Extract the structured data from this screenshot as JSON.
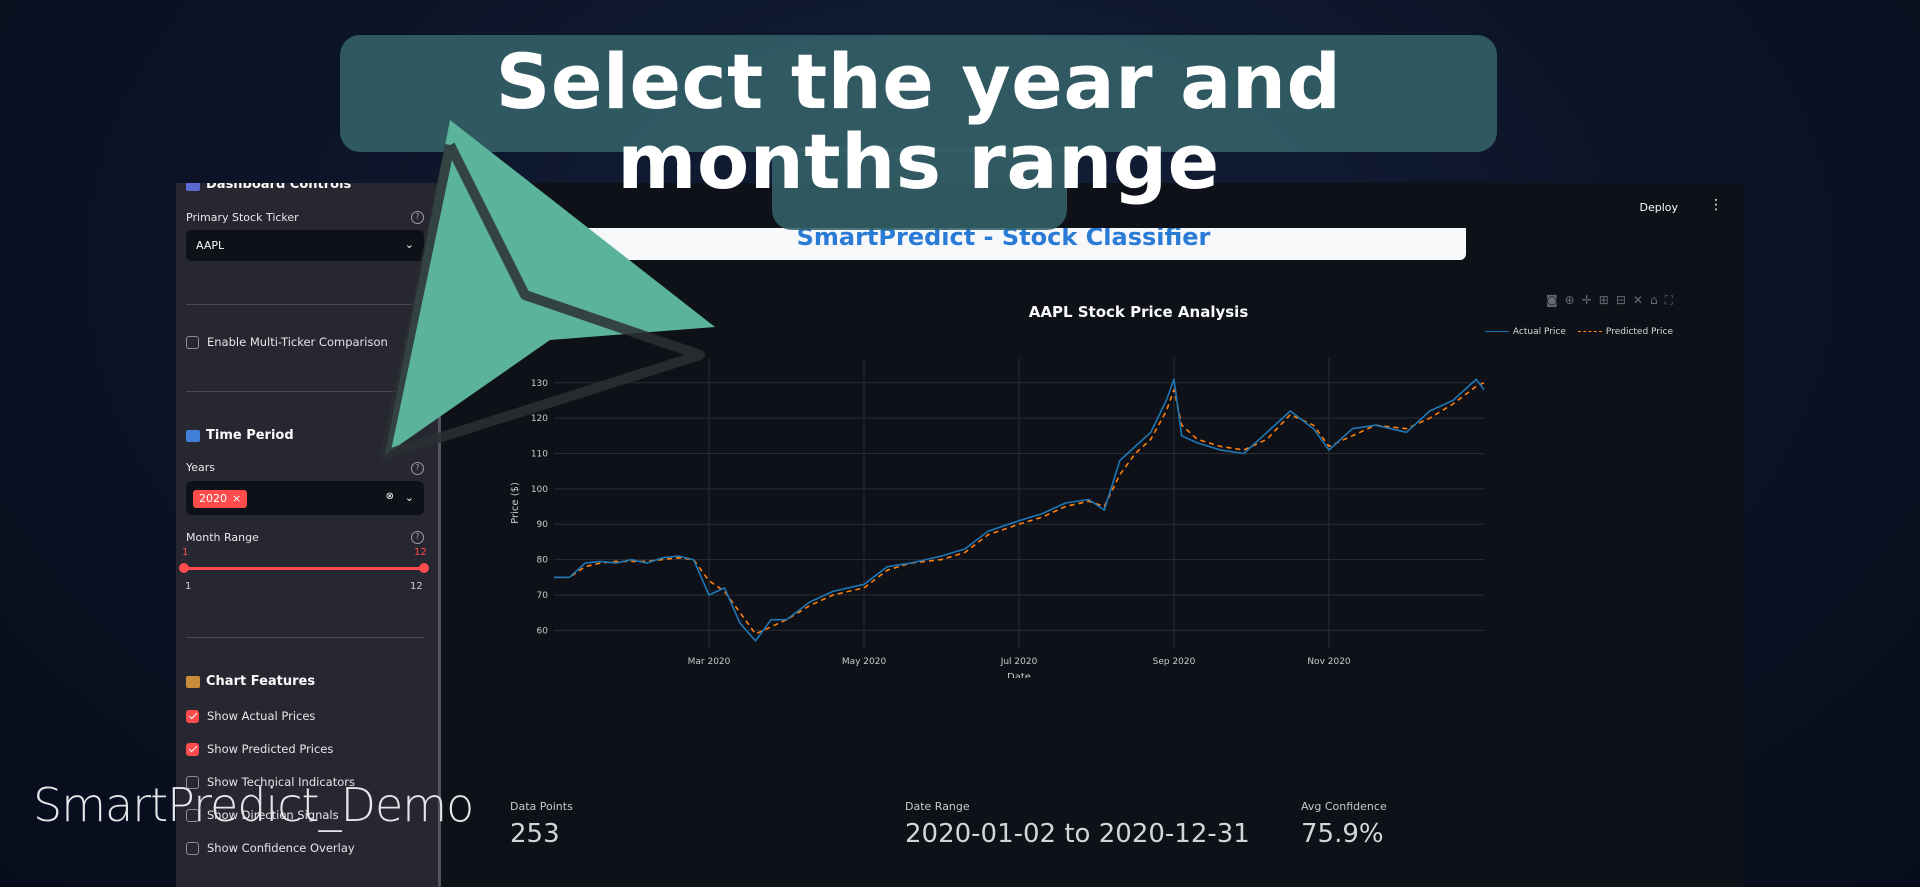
{
  "overlay": {
    "caption": "Select the year and months range",
    "watermark": "SmartPredict_Demo"
  },
  "sidebar": {
    "section_title": "Dashboard Controls",
    "ticker_label": "Primary Stock Ticker",
    "ticker_value": "AAPL",
    "multi_ticker_label": "Enable Multi-Ticker Comparison",
    "multi_ticker_checked": false,
    "time_period_title": "Time Period",
    "years_label": "Years",
    "years_selected": "2020",
    "month_range_label": "Month Range",
    "month_range_low": "1",
    "month_range_high": "12",
    "month_min_label": "1",
    "month_max_label": "12",
    "chart_features_title": "Chart Features",
    "features": [
      {
        "label": "Show Actual Prices",
        "checked": true
      },
      {
        "label": "Show Predicted Prices",
        "checked": true
      },
      {
        "label": "Show Technical Indicators",
        "checked": false
      },
      {
        "label": "Show Direction Signals",
        "checked": false
      },
      {
        "label": "Show Confidence Overlay",
        "checked": false
      }
    ]
  },
  "header": {
    "deploy_label": "Deploy",
    "app_title": "SmartPredict - Stock Classifier"
  },
  "metrics": [
    {
      "label": "Data Points",
      "value": "253"
    },
    {
      "label": "Date Range",
      "value": "2020-01-02 to 2020-12-31"
    },
    {
      "label": "Avg Confidence",
      "value": "75.9%"
    }
  ],
  "colors": {
    "accent": "#ff4b4b",
    "actual": "#1f77b4",
    "predicted": "#ff7f0e",
    "caption_bg": "#346269",
    "pointer": "#5bb39b"
  },
  "chart_data": {
    "type": "line",
    "title": "AAPL Stock Price Analysis",
    "xlabel": "Date",
    "ylabel": "Price ($)",
    "ylim": [
      55,
      137
    ],
    "y_ticks": [
      60,
      70,
      80,
      90,
      100,
      110,
      120,
      130
    ],
    "x_tick_labels": [
      "Mar 2020",
      "May 2020",
      "Jul 2020",
      "Sep 2020",
      "Nov 2020"
    ],
    "x_tick_months": [
      3,
      5,
      7,
      9,
      11
    ],
    "legend": "top-right",
    "series": [
      {
        "name": "Actual Price",
        "months": [
          1.0,
          1.2,
          1.4,
          1.6,
          1.8,
          2.0,
          2.2,
          2.4,
          2.6,
          2.8,
          3.0,
          3.2,
          3.4,
          3.6,
          3.8,
          4.0,
          4.3,
          4.6,
          5.0,
          5.3,
          5.6,
          6.0,
          6.3,
          6.6,
          7.0,
          7.3,
          7.6,
          7.9,
          8.1,
          8.3,
          8.5,
          8.7,
          8.9,
          9.0,
          9.1,
          9.3,
          9.6,
          9.9,
          10.2,
          10.5,
          10.8,
          11.0,
          11.3,
          11.6,
          12.0,
          12.3,
          12.6,
          12.9,
          13.0
        ],
        "values": [
          75,
          75,
          79,
          79.5,
          79,
          80,
          79,
          80.5,
          81,
          80,
          70,
          72,
          62,
          57,
          63,
          63,
          68,
          71,
          73,
          78,
          79,
          81,
          83,
          88,
          91,
          93,
          96,
          97,
          94,
          108,
          112,
          116,
          125,
          131,
          115,
          113,
          111,
          110,
          116,
          122,
          117,
          111,
          117,
          118,
          116,
          122,
          125,
          131,
          128
        ]
      },
      {
        "name": "Predicted Price",
        "months": [
          1.0,
          1.2,
          1.4,
          1.6,
          1.8,
          2.0,
          2.2,
          2.4,
          2.6,
          2.8,
          3.0,
          3.2,
          3.4,
          3.6,
          3.8,
          4.0,
          4.3,
          4.6,
          5.0,
          5.3,
          5.6,
          6.0,
          6.3,
          6.6,
          7.0,
          7.3,
          7.6,
          7.9,
          8.1,
          8.3,
          8.5,
          8.7,
          8.9,
          9.0,
          9.1,
          9.3,
          9.6,
          9.9,
          10.2,
          10.5,
          10.8,
          11.0,
          11.3,
          11.6,
          12.0,
          12.3,
          12.6,
          12.9,
          13.0
        ],
        "values": [
          75,
          75,
          78,
          79,
          79.5,
          79.5,
          79.5,
          80,
          80.5,
          80,
          74,
          71,
          65,
          59,
          61,
          63,
          67,
          70,
          72,
          77,
          79,
          80,
          82,
          87,
          90,
          92,
          95,
          96.5,
          95,
          104,
          110,
          114,
          122,
          128,
          118,
          114,
          112,
          111,
          114,
          121,
          118,
          112,
          115,
          118,
          117,
          120,
          124,
          129,
          130
        ]
      }
    ]
  }
}
